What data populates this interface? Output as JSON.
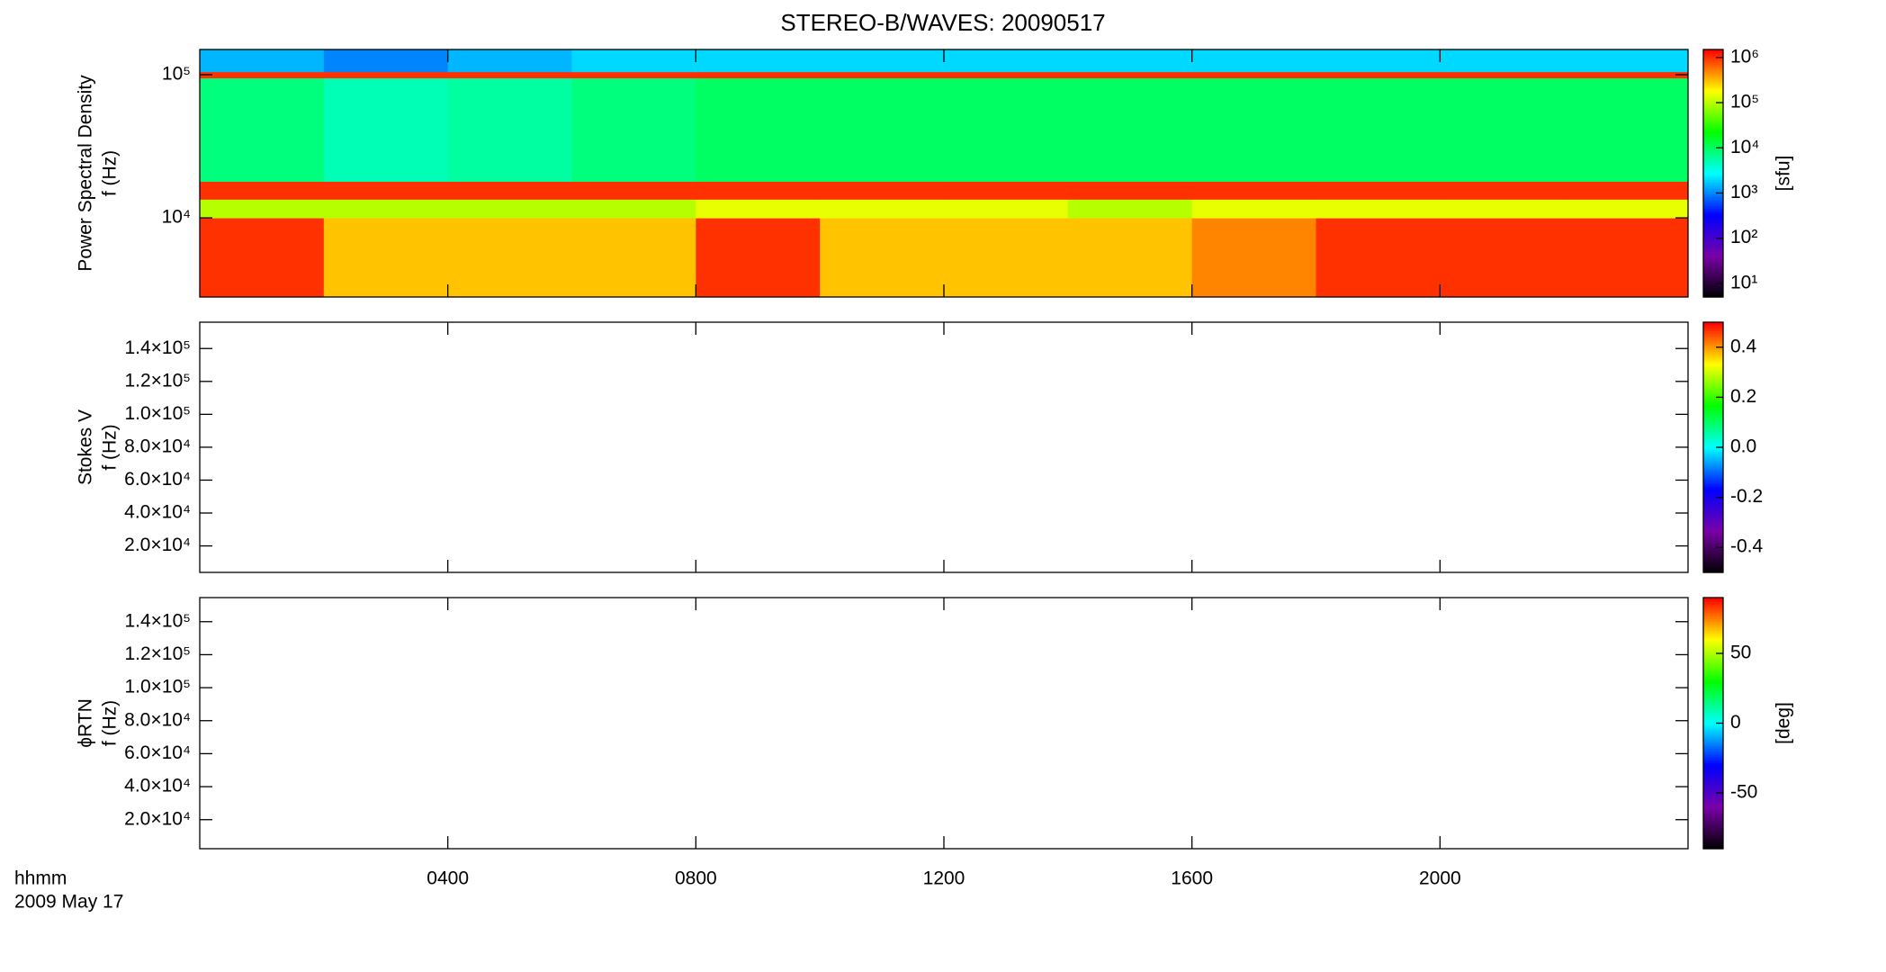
{
  "chart_data": [
    {
      "type": "heatmap",
      "title": "STEREO-B/WAVES: 20090517",
      "ylabel": [
        "Power Spectral Density",
        "f (Hz)"
      ],
      "ylog": true,
      "ylim": [
        2800,
        150000
      ],
      "yticks": [
        {
          "value": 10000,
          "label": "10⁴"
        },
        {
          "value": 100000,
          "label": "10⁵"
        }
      ],
      "xlim": [
        0,
        24
      ],
      "x_edges": [
        0,
        2,
        4,
        6,
        8,
        10,
        12,
        14,
        16,
        18,
        20,
        22,
        24
      ],
      "y_edges": [
        2800,
        10000,
        13500,
        18000,
        95000,
        105000,
        150000
      ],
      "z": [
        [
          1000000,
          300000,
          300000,
          300000,
          1000000,
          300000,
          300000,
          300000,
          500000,
          1000000,
          1000000,
          1000000
        ],
        [
          100000,
          100000,
          100000,
          100000,
          150000,
          150000,
          150000,
          100000,
          150000,
          150000,
          150000,
          150000
        ],
        [
          1000000,
          1000000,
          1000000,
          1000000,
          1000000,
          1000000,
          1000000,
          1000000,
          1000000,
          1000000,
          1000000,
          1000000
        ],
        [
          8000,
          5000,
          6000,
          8000,
          10000,
          10000,
          10000,
          10000,
          10000,
          10000,
          10000,
          10000
        ],
        [
          1000000,
          1000000,
          1000000,
          1000000,
          1000000,
          1000000,
          1000000,
          1000000,
          1000000,
          1000000,
          1000000,
          1000000
        ],
        [
          1500,
          1000,
          1500,
          2000,
          2000,
          2000,
          2000,
          2000,
          2000,
          2000,
          2000,
          2000
        ]
      ],
      "zlog": true,
      "zlim": [
        5,
        1500000
      ],
      "zticks": [
        {
          "value": 10,
          "label": "10¹"
        },
        {
          "value": 100,
          "label": "10²"
        },
        {
          "value": 1000,
          "label": "10³"
        },
        {
          "value": 10000,
          "label": "10⁴"
        },
        {
          "value": 100000,
          "label": "10⁵"
        },
        {
          "value": 1000000,
          "label": "10⁶"
        }
      ],
      "zlabel": "[sfu]",
      "colormap": [
        "#000000",
        "#7a00a8",
        "#0000ff",
        "#00ffff",
        "#00ff00",
        "#ffff00",
        "#ff0000"
      ]
    },
    {
      "type": "heatmap",
      "ylabel": [
        "Stokes V",
        "f (Hz)"
      ],
      "ylim": [
        3900,
        156000
      ],
      "yticks": [
        {
          "value": 20000,
          "label": "2.0×10⁴"
        },
        {
          "value": 40000,
          "label": "4.0×10⁴"
        },
        {
          "value": 60000,
          "label": "6.0×10⁴"
        },
        {
          "value": 80000,
          "label": "8.0×10⁴"
        },
        {
          "value": 100000,
          "label": "1.0×10⁵"
        },
        {
          "value": 120000,
          "label": "1.2×10⁵"
        },
        {
          "value": 140000,
          "label": "1.4×10⁵"
        }
      ],
      "xlim": [
        0,
        24
      ],
      "zlim": [
        -0.5,
        0.5
      ],
      "zticks": [
        {
          "value": -0.4,
          "label": "-0.4"
        },
        {
          "value": -0.2,
          "label": "-0.2"
        },
        {
          "value": 0,
          "label": "0.0"
        },
        {
          "value": 0.2,
          "label": "0.2"
        },
        {
          "value": 0.4,
          "label": "0.4"
        }
      ],
      "colormap": [
        "#000000",
        "#7a00a8",
        "#0000ff",
        "#00ffff",
        "#00ff00",
        "#ffff00",
        "#ff0000"
      ]
    },
    {
      "type": "heatmap",
      "ylabel": [
        "ϕRTN",
        "f (Hz)"
      ],
      "ylim": [
        2400,
        154600
      ],
      "yticks": [
        {
          "value": 20000,
          "label": "2.0×10⁴"
        },
        {
          "value": 40000,
          "label": "4.0×10⁴"
        },
        {
          "value": 60000,
          "label": "6.0×10⁴"
        },
        {
          "value": 80000,
          "label": "8.0×10⁴"
        },
        {
          "value": 100000,
          "label": "1.0×10⁵"
        },
        {
          "value": 120000,
          "label": "1.2×10⁵"
        },
        {
          "value": 140000,
          "label": "1.4×10⁵"
        }
      ],
      "xlim": [
        0,
        24
      ],
      "xticks": [
        {
          "value": 4,
          "label": "0400"
        },
        {
          "value": 8,
          "label": "0800"
        },
        {
          "value": 12,
          "label": "1200"
        },
        {
          "value": 16,
          "label": "1600"
        },
        {
          "value": 20,
          "label": "2000"
        }
      ],
      "xlabel": [
        "hhmm",
        "2009 May 17"
      ],
      "zlim": [
        -90,
        90
      ],
      "zticks": [
        -50,
        0,
        50
      ],
      "zlabel": "[deg]",
      "colormap": [
        "#000000",
        "#7a00a8",
        "#0000ff",
        "#00ffff",
        "#00ff00",
        "#ffff00",
        "#ff0000"
      ]
    }
  ]
}
